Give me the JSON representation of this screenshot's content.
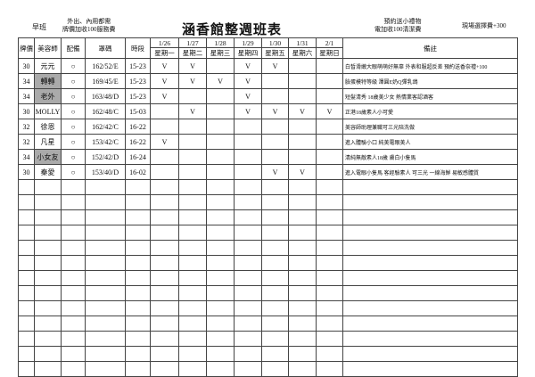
{
  "header": {
    "shift": "早班",
    "note_left": [
      "外出、內用都需",
      "牌價加收100服務費"
    ],
    "title": "涵香館整週班表",
    "note_mid": [
      "預約送小禮物",
      "電加收100清潔費"
    ],
    "note_right": "現場選擇費+300"
  },
  "table": {
    "columns": [
      "牌價",
      "美容師",
      "配備",
      "罩碼",
      "時段"
    ],
    "dates": [
      "1/26",
      "1/27",
      "1/28",
      "1/29",
      "1/30",
      "1/31",
      "2/1"
    ],
    "weekdays": [
      "星期一",
      "星期二",
      "星期三",
      "星期四",
      "星期五",
      "星期六",
      "星期日"
    ],
    "notes_header": "備註",
    "rows": [
      {
        "price": "30",
        "name": "元元",
        "gear": "○",
        "size": "162/52/E",
        "time": "15-23",
        "days": [
          "V",
          "V",
          null,
          "V",
          "V",
          null,
          null
        ],
        "note": "白皙滑嫩大眼萌萌好無辜 外表和服超反差 預約送香奈禮+100"
      },
      {
        "price": "34",
        "name": "轉轉",
        "shaded": true,
        "gear": "○",
        "size": "169/45/E",
        "time": "15-23",
        "days": [
          "V",
          "V",
          "V",
          "V",
          null,
          null,
          null
        ],
        "note": "臉蛋模特等級 澤圓E奶Q彈乳鴿"
      },
      {
        "price": "34",
        "name": "老外",
        "shaded": true,
        "gear": "○",
        "size": "163/48/D",
        "time": "15-23",
        "days": [
          "V",
          null,
          null,
          "V",
          null,
          null,
          null
        ],
        "note": "短髮清秀 18歲美少女 熱情業客認酒客"
      },
      {
        "price": "30",
        "name": "MOLLY",
        "gear": "○",
        "size": "162/48/C",
        "time": "15-03",
        "days": [
          null,
          "V",
          null,
          "V",
          "V",
          "V",
          "V"
        ],
        "note": "正港18歲素人小可愛"
      },
      {
        "price": "32",
        "name": "徐恩",
        "gear": "○",
        "size": "162/42/C",
        "time": "16-22",
        "days": [
          null,
          null,
          null,
          null,
          null,
          null,
          null
        ],
        "note": "美容師助理兼職可三光陪洗做"
      },
      {
        "price": "32",
        "name": "凡星",
        "gear": "○",
        "size": "153/42/C",
        "time": "16-22",
        "days": [
          "V",
          null,
          null,
          null,
          null,
          null,
          null
        ],
        "note": "進入體驗小口 純美電眼美人"
      },
      {
        "price": "34",
        "name": "小女友",
        "shaded": true,
        "gear": "○",
        "size": "152/42/D",
        "time": "16-24",
        "days": [
          null,
          null,
          null,
          null,
          null,
          null,
          null
        ],
        "note": "清純無敵素人18歲 膚白小隻馬"
      },
      {
        "price": "30",
        "name": "秦愛",
        "gear": "○",
        "size": "153/40/D",
        "time": "16-02",
        "days": [
          null,
          null,
          null,
          null,
          "V",
          "V",
          null
        ],
        "note": "進入電眼小隻馬 客經驗素人 可三光 一線海鮮 易敏感體質"
      }
    ]
  }
}
